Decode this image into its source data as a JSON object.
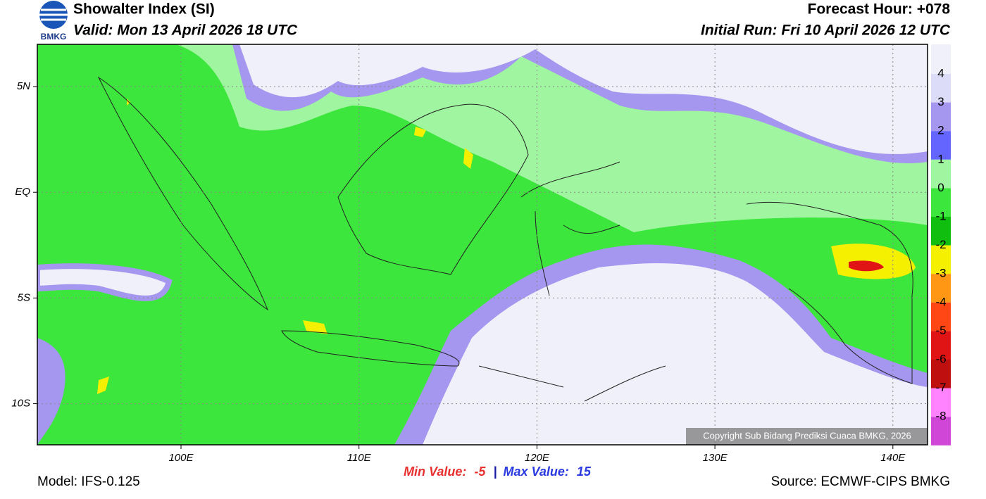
{
  "header": {
    "logo_text": "BMKG",
    "title": "Showalter Index (SI)",
    "valid": "Valid: Mon 13 April 2026 18 UTC",
    "forecast_hour": "Forecast Hour: +078",
    "initial_run": "Initial Run: Fri 10 April 2026 12 UTC"
  },
  "map": {
    "lat_labels": [
      "5N",
      "EQ",
      "5S",
      "10S"
    ],
    "lon_labels": [
      "100E",
      "110E",
      "120E",
      "130E",
      "140E"
    ],
    "copyright": "Copyright Sub Bidang Prediksi Cuaca BMKG, 2026"
  },
  "colorbar": {
    "colors": [
      "#f0f0fa",
      "#dcdcf8",
      "#a596f0",
      "#6464ff",
      "#a0f5a0",
      "#3ce63c",
      "#0fbe0f",
      "#f5f000",
      "#ff9614",
      "#ff4614",
      "#e01414",
      "#c00f0f",
      "#ff82ff",
      "#d046d6",
      "#82147e"
    ],
    "labels": [
      4,
      3,
      2,
      1,
      0,
      -1,
      -2,
      -3,
      -4,
      -5,
      -6,
      -7,
      -8
    ]
  },
  "footer": {
    "model": "Model: IFS-0.125",
    "min_label": "Min Value:",
    "min_value": -5,
    "max_label": "Max Value:",
    "max_value": 15,
    "source": "Source: ECMWF-CIPS BMKG"
  }
}
